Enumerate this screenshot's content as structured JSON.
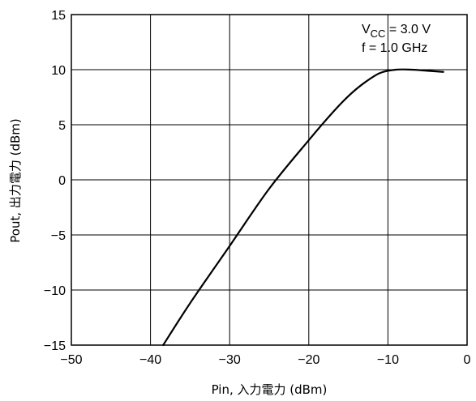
{
  "chart_data": {
    "type": "line",
    "xlabel": "Pin, 入力電力 (dBm)",
    "ylabel": "Pout, 出力電力 (dBm)",
    "xlim": [
      -50,
      0
    ],
    "ylim": [
      -15,
      15
    ],
    "x_ticks": [
      -50,
      -40,
      -30,
      -20,
      -10,
      0
    ],
    "y_ticks": [
      -15,
      -10,
      -5,
      0,
      5,
      10,
      15
    ],
    "x_tick_labels": [
      "−50",
      "−40",
      "−30",
      "−20",
      "−10",
      "0"
    ],
    "y_tick_labels": [
      "−15",
      "−10",
      "−5",
      "0",
      "5",
      "10",
      "15"
    ],
    "grid": true,
    "annotation": {
      "vcc_main": "V",
      "vcc_sub": "CC",
      "vcc_value": " = 3.0 V",
      "freq": "f = 1.0 GHz"
    },
    "series": [
      {
        "x": [
          -38.4,
          -35,
          -30,
          -25,
          -20,
          -17,
          -15,
          -13,
          -11,
          -9,
          -7,
          -5,
          -3
        ],
        "y": [
          -15,
          -11.2,
          -6.0,
          -0.8,
          3.6,
          6.1,
          7.6,
          8.8,
          9.7,
          10.0,
          10.0,
          9.9,
          9.8
        ]
      }
    ]
  }
}
